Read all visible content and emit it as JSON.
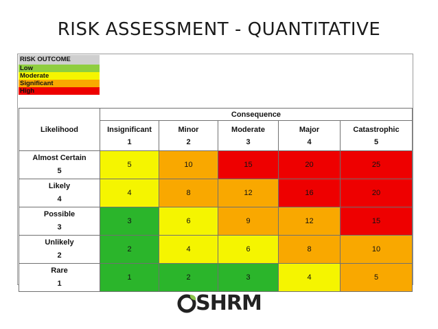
{
  "slide": {
    "title": "RISK ASSESSMENT - QUANTITATIVE"
  },
  "legend": {
    "heading": "RISK OUTCOME",
    "items": [
      {
        "label": "Low",
        "color": "#8fce3f"
      },
      {
        "label": "Moderate",
        "color": "#f5f500"
      },
      {
        "label": "Significant",
        "color": "#f9a800"
      },
      {
        "label": "High",
        "color": "#ee0000"
      }
    ]
  },
  "matrix": {
    "consequence_heading": "Consequence",
    "likelihood_heading": "Likelihood",
    "columns": [
      {
        "label": "Insignificant",
        "num": "1"
      },
      {
        "label": "Minor",
        "num": "2"
      },
      {
        "label": "Moderate",
        "num": "3"
      },
      {
        "label": "Major",
        "num": "4"
      },
      {
        "label": "Catastrophic",
        "num": "5"
      }
    ],
    "rows": [
      {
        "label": "Almost Certain",
        "num": "5",
        "cells": [
          "5",
          "10",
          "15",
          "20",
          "25"
        ],
        "levels": [
          "mod",
          "sig",
          "high",
          "high",
          "high"
        ]
      },
      {
        "label": "Likely",
        "num": "4",
        "cells": [
          "4",
          "8",
          "12",
          "16",
          "20"
        ],
        "levels": [
          "mod",
          "sig",
          "sig",
          "high",
          "high"
        ]
      },
      {
        "label": "Possible",
        "num": "3",
        "cells": [
          "3",
          "6",
          "9",
          "12",
          "15"
        ],
        "levels": [
          "low",
          "mod",
          "sig",
          "sig",
          "high"
        ]
      },
      {
        "label": "Unlikely",
        "num": "2",
        "cells": [
          "2",
          "4",
          "6",
          "8",
          "10"
        ],
        "levels": [
          "low",
          "mod",
          "mod",
          "sig",
          "sig"
        ]
      },
      {
        "label": "Rare",
        "num": "1",
        "cells": [
          "1",
          "2",
          "3",
          "4",
          "5"
        ],
        "levels": [
          "low",
          "low",
          "low",
          "mod",
          "sig"
        ]
      }
    ]
  },
  "logo": {
    "text": "SHRM",
    "mark_icon": "oshrm-o-leaf-icon"
  }
}
